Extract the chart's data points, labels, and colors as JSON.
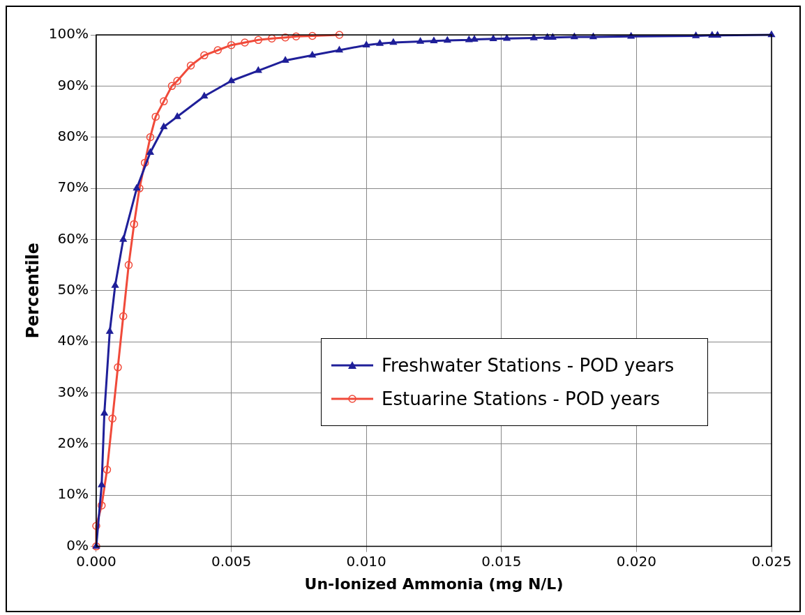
{
  "chart_data": {
    "type": "line",
    "xlabel": "Un-Ionized Ammonia (mg N/L)",
    "ylabel": "Percentile",
    "xlim": [
      0,
      0.025
    ],
    "ylim": [
      0,
      100
    ],
    "xticks": [
      {
        "value": 0,
        "label": "0.000"
      },
      {
        "value": 0.005,
        "label": "0.005"
      },
      {
        "value": 0.01,
        "label": "0.010"
      },
      {
        "value": 0.015,
        "label": "0.015"
      },
      {
        "value": 0.02,
        "label": "0.020"
      },
      {
        "value": 0.025,
        "label": "0.025"
      }
    ],
    "yticks": [
      {
        "value": 0,
        "label": "0%"
      },
      {
        "value": 10,
        "label": "10%"
      },
      {
        "value": 20,
        "label": "20%"
      },
      {
        "value": 30,
        "label": "30%"
      },
      {
        "value": 40,
        "label": "40%"
      },
      {
        "value": 50,
        "label": "50%"
      },
      {
        "value": 60,
        "label": "60%"
      },
      {
        "value": 70,
        "label": "70%"
      },
      {
        "value": 80,
        "label": "80%"
      },
      {
        "value": 90,
        "label": "90%"
      },
      {
        "value": 100,
        "label": "100%"
      }
    ],
    "grid": true,
    "legend": "right",
    "series": [
      {
        "name": "Freshwater Stations - POD years",
        "color": "#1f1f99",
        "marker": "triangle",
        "x": [
          0,
          0.0002,
          0.0003,
          0.0005,
          0.0007,
          0.001,
          0.0015,
          0.002,
          0.0025,
          0.003,
          0.004,
          0.005,
          0.006,
          0.007,
          0.008,
          0.009,
          0.01,
          0.0105,
          0.011,
          0.012,
          0.0125,
          0.013,
          0.0138,
          0.014,
          0.0147,
          0.0152,
          0.0162,
          0.0167,
          0.0169,
          0.0177,
          0.0184,
          0.0198,
          0.0222,
          0.0228,
          0.023,
          0.025
        ],
        "values": [
          0,
          12,
          26,
          42,
          51,
          60,
          70,
          77,
          82,
          84,
          88,
          91,
          93,
          95,
          96,
          97,
          98,
          98.3,
          98.5,
          98.7,
          98.8,
          98.9,
          99,
          99.1,
          99.2,
          99.3,
          99.4,
          99.5,
          99.5,
          99.6,
          99.6,
          99.7,
          99.8,
          99.9,
          99.9,
          100
        ]
      },
      {
        "name": "Estuarine Stations - POD years",
        "color": "#f04a3a",
        "marker": "circle",
        "x": [
          0,
          0,
          0.0002,
          0.0004,
          0.0006,
          0.0008,
          0.001,
          0.0012,
          0.0014,
          0.0016,
          0.0018,
          0.002,
          0.0022,
          0.0025,
          0.0028,
          0.003,
          0.0035,
          0.004,
          0.0045,
          0.005,
          0.0055,
          0.006,
          0.0065,
          0.007,
          0.0074,
          0.008,
          0.009
        ],
        "values": [
          0,
          4,
          8,
          15,
          25,
          35,
          45,
          55,
          63,
          70,
          75,
          80,
          84,
          87,
          90,
          91,
          94,
          96,
          97,
          98,
          98.5,
          99,
          99.3,
          99.5,
          99.7,
          99.8,
          100
        ]
      }
    ]
  }
}
